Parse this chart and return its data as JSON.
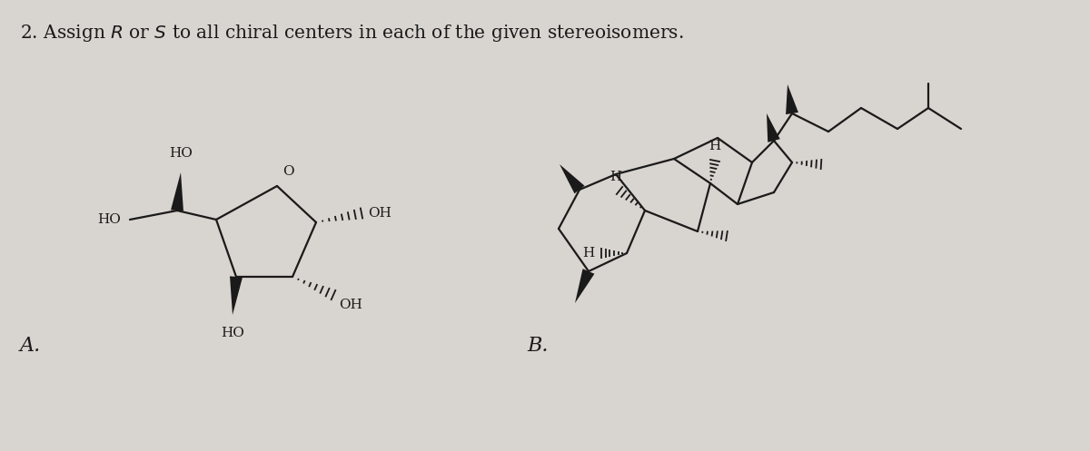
{
  "bg_color": "#d8d4cf",
  "line_color": "#1a1a1a",
  "title_text": "2. Assign $R$ or $S$ to all chiral centers in each of the given stereoisomers.",
  "label_A": "A.",
  "label_B": "B.",
  "font_size_title": 14.5,
  "font_size_label": 16,
  "font_size_atom": 11
}
